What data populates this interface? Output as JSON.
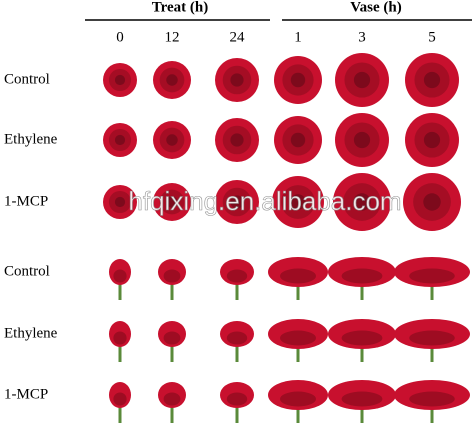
{
  "header": {
    "groups": [
      {
        "label": "Treat (h)",
        "times": [
          "0",
          "12",
          "24"
        ]
      },
      {
        "label": "Vase (h)",
        "times": [
          "1",
          "3",
          "5"
        ]
      }
    ]
  },
  "rows": [
    "Control",
    "Ethylene",
    "1-MCP",
    "Control",
    "Ethylene",
    "1-MCP"
  ],
  "watermark": "hfqixing.en.alibaba.com"
}
